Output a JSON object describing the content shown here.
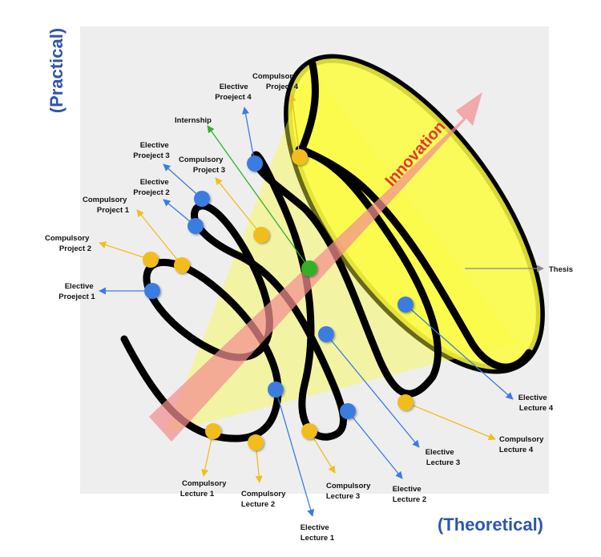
{
  "axes": {
    "vertical_label": "(Practical)",
    "horizontal_label": "(Theoretical)"
  },
  "innovation_label": "Innovation",
  "thesis_label": "Thesis",
  "colors": {
    "compulsory": "#f2bd1d",
    "elective": "#3b7be0",
    "internship": "#33b02a",
    "spiral": "#000000",
    "cone": "#fbfb3e",
    "innovation": "#f28f8f",
    "innovation_text": "#e8352b",
    "axis_text": "#2f56a8",
    "background": "#eeeeee"
  },
  "nodes": {
    "compulsory_project_4": {
      "line1": "Compulsory",
      "line2": "Project 4"
    },
    "elective_project_4": {
      "line1": "Elective",
      "line2": "Proeject 4"
    },
    "internship": {
      "line1": "Internship"
    },
    "elective_project_3": {
      "line1": "Elective",
      "line2": "Proeject 3"
    },
    "compulsory_project_3": {
      "line1": "Compulsory",
      "line2": "Project 3"
    },
    "elective_project_2": {
      "line1": "Elective",
      "line2": "Proeject 2"
    },
    "compulsory_project_1": {
      "line1": "Compulsory",
      "line2": "Project 1"
    },
    "compulsory_project_2": {
      "line1": "Compulsory",
      "line2": "Project 2"
    },
    "elective_project_1": {
      "line1": "Elective",
      "line2": "Proeject 1"
    },
    "elective_lecture_4": {
      "line1": "Elective",
      "line2": "Lecture 4"
    },
    "compulsory_lecture_4": {
      "line1": "Compulsory",
      "line2": "Lecture 4"
    },
    "elective_lecture_3": {
      "line1": "Elective",
      "line2": "Lecture 3"
    },
    "elective_lecture_2": {
      "line1": "Elective",
      "line2": "Lecture 2"
    },
    "compulsory_lecture_3": {
      "line1": "Compulsory",
      "line2": "Lecture 3"
    },
    "compulsory_lecture_2": {
      "line1": "Compulsory",
      "line2": "Lecture 2"
    },
    "compulsory_lecture_1": {
      "line1": "Compulsory",
      "line2": "Lecture 1"
    },
    "elective_lecture_1": {
      "line1": "Elective",
      "line2": "Lecture 1"
    }
  }
}
